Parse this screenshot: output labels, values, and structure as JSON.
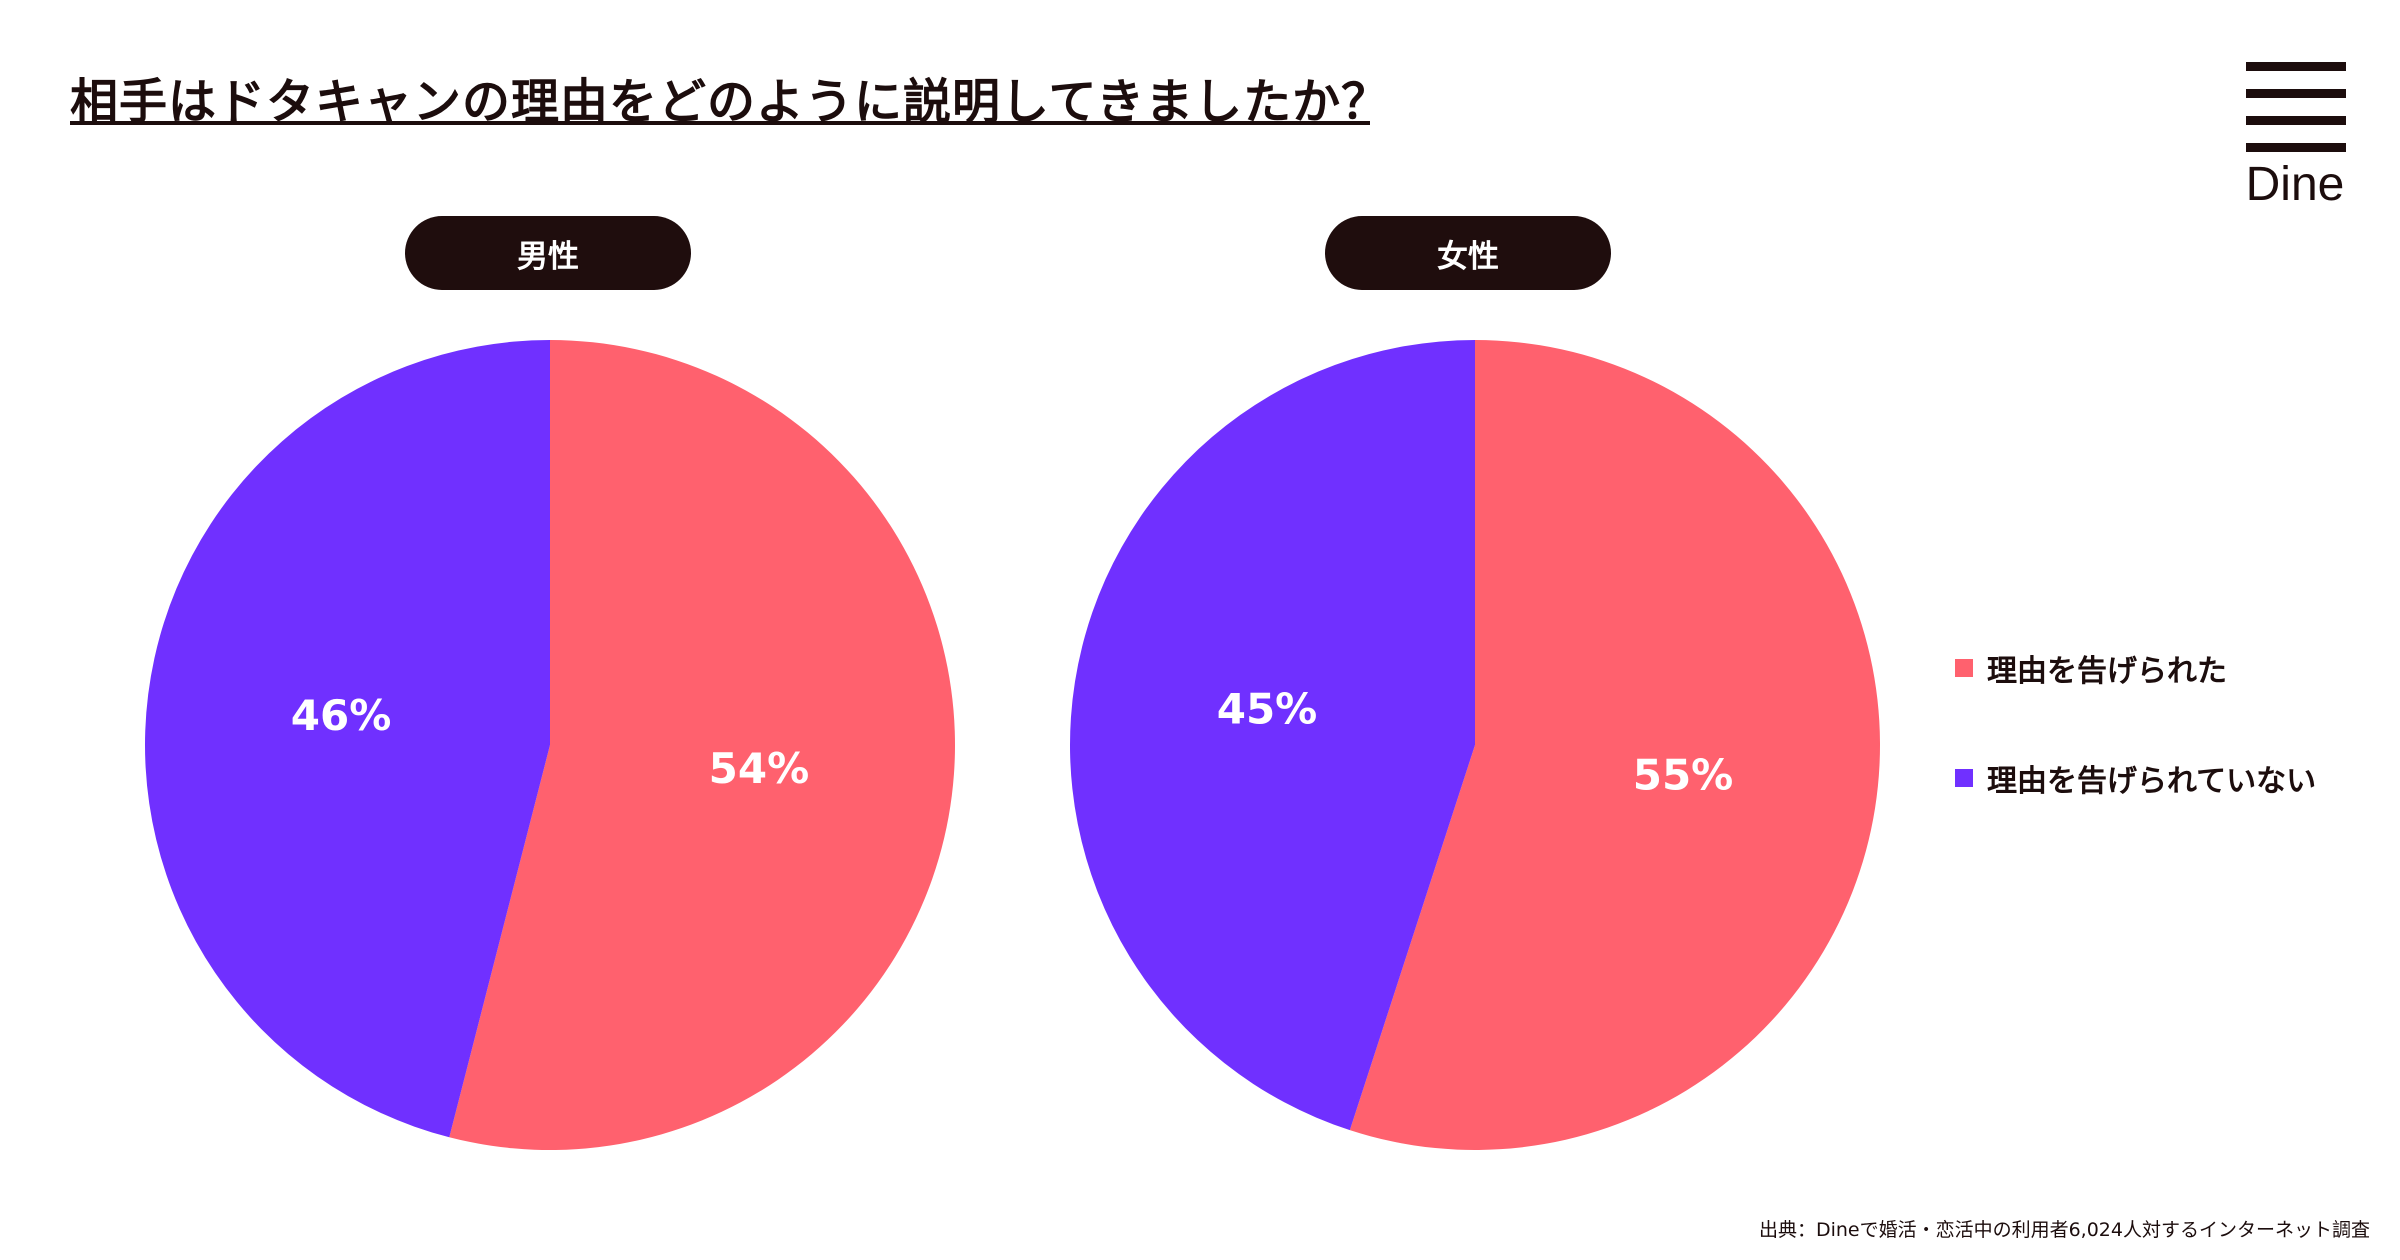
{
  "title": "相手はドタキャンの理由をどのように説明してきましたか？",
  "logo": {
    "text": "Dine"
  },
  "chart_data": [
    {
      "type": "pie",
      "title": "男性",
      "categories": [
        "理由を告げられた",
        "理由を告げられていない"
      ],
      "values": [
        54,
        46
      ],
      "labels": [
        "54%",
        "46%"
      ],
      "colors": [
        "#ff616e",
        "#7030ff"
      ]
    },
    {
      "type": "pie",
      "title": "女性",
      "categories": [
        "理由を告げられた",
        "理由を告げられていない"
      ],
      "values": [
        55,
        45
      ],
      "labels": [
        "55%",
        "45%"
      ],
      "colors": [
        "#ff616e",
        "#7030ff"
      ]
    }
  ],
  "legend": {
    "placement": "right",
    "items": [
      {
        "label": "理由を告げられた",
        "color": "#ff616e"
      },
      {
        "label": "理由を告げられていない",
        "color": "#7030ff"
      }
    ]
  },
  "source": "出典：Dineで婚活・恋活中の利用者6,024人対するインターネット調査"
}
